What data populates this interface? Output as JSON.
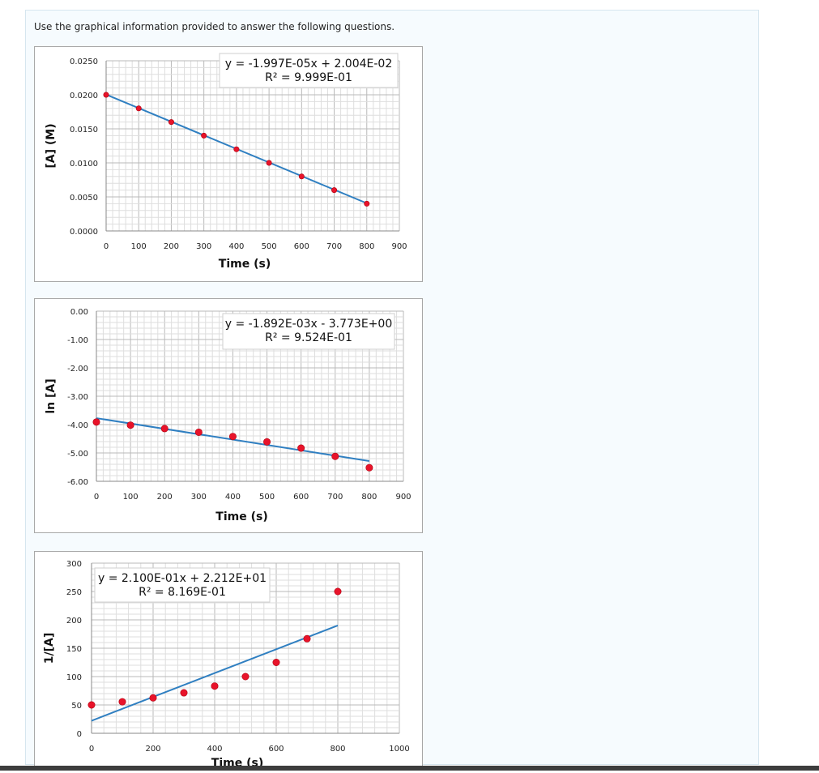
{
  "instruction": "Use the graphical information provided to answer the following questions.",
  "chart_data": [
    {
      "type": "scatter",
      "xlabel": "Time (s)",
      "ylabel": "[A] (M)",
      "xlim": [
        0,
        900
      ],
      "ylim": [
        0,
        0.025
      ],
      "x_ticks": [
        "0",
        "100",
        "200",
        "300",
        "400",
        "500",
        "600",
        "700",
        "800",
        "900"
      ],
      "y_ticks": [
        "0.0000",
        "0.0050",
        "0.0100",
        "0.0150",
        "0.0200",
        "0.0250"
      ],
      "grid": true,
      "points": {
        "x": [
          0,
          100,
          200,
          300,
          400,
          500,
          600,
          700,
          800
        ],
        "y": [
          0.02,
          0.018,
          0.016,
          0.014,
          0.012,
          0.01,
          0.008,
          0.006,
          0.004
        ]
      },
      "trendline": {
        "slope": -1.997e-05,
        "intercept": 0.02004,
        "x_range": [
          0,
          800
        ]
      },
      "equation": "y = -1.997E-05x + 2.004E-02",
      "r_squared": "R² = 9.999E-01",
      "colors": {
        "points": "#e8132a",
        "line": "#2f7fc1"
      }
    },
    {
      "type": "scatter",
      "xlabel": "Time (s)",
      "ylabel": "ln [A]",
      "xlim": [
        0,
        900
      ],
      "ylim": [
        -6,
        0
      ],
      "x_ticks": [
        "0",
        "100",
        "200",
        "300",
        "400",
        "500",
        "600",
        "700",
        "800",
        "900"
      ],
      "y_ticks": [
        "0.00",
        "-1.00",
        "-2.00",
        "-3.00",
        "-4.00",
        "-5.00",
        "-6.00"
      ],
      "grid": true,
      "points": {
        "x": [
          0,
          100,
          200,
          300,
          400,
          500,
          600,
          700,
          800
        ],
        "y": [
          -3.91,
          -4.02,
          -4.14,
          -4.27,
          -4.42,
          -4.61,
          -4.83,
          -5.12,
          -5.52
        ]
      },
      "trendline": {
        "slope": -0.001892,
        "intercept": -3.773,
        "x_range": [
          0,
          800
        ]
      },
      "equation": "y = -1.892E-03x - 3.773E+00",
      "r_squared": "R² = 9.524E-01",
      "colors": {
        "points": "#e8132a",
        "line": "#2f7fc1"
      }
    },
    {
      "type": "scatter",
      "xlabel": "Time (s)",
      "ylabel": "1/[A]",
      "xlim": [
        0,
        1000
      ],
      "ylim": [
        0,
        300
      ],
      "x_ticks": [
        "0",
        "200",
        "400",
        "600",
        "800",
        "1000"
      ],
      "y_ticks": [
        "0",
        "50",
        "100",
        "150",
        "200",
        "250",
        "300"
      ],
      "grid": true,
      "points": {
        "x": [
          0,
          100,
          200,
          300,
          400,
          500,
          600,
          700,
          800
        ],
        "y": [
          50,
          55.6,
          62.5,
          71.4,
          83.3,
          100,
          125,
          166.7,
          250
        ]
      },
      "trendline": {
        "slope": 0.21,
        "intercept": 22.12,
        "x_range": [
          0,
          800
        ]
      },
      "equation": "y = 2.100E-01x + 2.212E+01",
      "r_squared": "R² = 8.169E-01",
      "colors": {
        "points": "#e8132a",
        "line": "#2f7fc1"
      }
    }
  ]
}
